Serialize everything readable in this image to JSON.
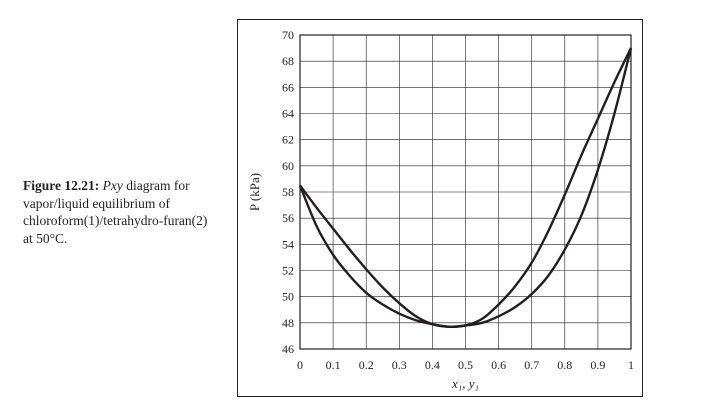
{
  "caption": {
    "label": "Figure 12.21:",
    "italic": "Pxy",
    "text": " diagram for vapor/liquid equilibrium of chloroform(1)/tetrahydro-furan(2) at 50°C."
  },
  "chart_data": {
    "type": "line",
    "title": "",
    "xlabel": "x₁, y₁",
    "ylabel": "P (kPa)",
    "xlim": [
      0,
      1
    ],
    "ylim": [
      46,
      70
    ],
    "grid": true,
    "x_ticks": [
      "0",
      "0.1",
      "0.2",
      "0.3",
      "0.4",
      "0.5",
      "0.6",
      "0.7",
      "0.8",
      "0.9",
      "1"
    ],
    "y_ticks": [
      "46",
      "48",
      "50",
      "52",
      "54",
      "56",
      "58",
      "60",
      "62",
      "64",
      "66",
      "68",
      "70"
    ],
    "series": [
      {
        "x": [
          0,
          0.05,
          0.1,
          0.15,
          0.2,
          0.25,
          0.3,
          0.35,
          0.4,
          0.45,
          0.5,
          0.55,
          0.6,
          0.65,
          0.7,
          0.75,
          0.8,
          0.85,
          0.9,
          0.95,
          1
        ],
        "values": [
          58.5,
          56.8,
          55.2,
          53.6,
          52.1,
          50.7,
          49.5,
          48.5,
          47.9,
          47.7,
          47.8,
          48.3,
          49.4,
          50.8,
          52.6,
          55.0,
          57.8,
          60.8,
          63.6,
          66.4,
          69.0
        ]
      },
      {
        "x": [
          0,
          0.05,
          0.1,
          0.15,
          0.2,
          0.25,
          0.3,
          0.35,
          0.4,
          0.45,
          0.5,
          0.55,
          0.6,
          0.65,
          0.7,
          0.75,
          0.8,
          0.85,
          0.9,
          0.95,
          1
        ],
        "values": [
          58.5,
          55.4,
          53.2,
          51.6,
          50.3,
          49.4,
          48.7,
          48.2,
          47.9,
          47.7,
          47.8,
          48.0,
          48.5,
          49.2,
          50.2,
          51.6,
          53.6,
          56.2,
          59.7,
          64.0,
          69.0
        ]
      }
    ]
  }
}
